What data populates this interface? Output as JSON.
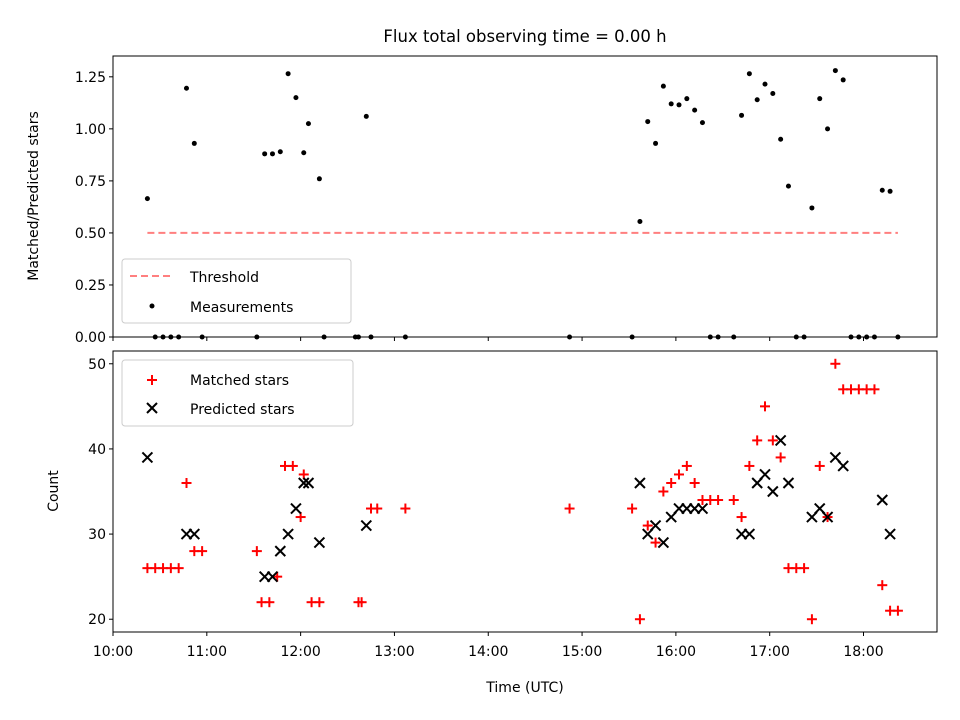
{
  "chart_data": [
    {
      "type": "scatter",
      "title": "Flux total observing time = 0.00 h",
      "xlabel": "",
      "ylabel": "Matched/Predicted stars",
      "xlim": [
        "10:00",
        "18:47"
      ],
      "ylim": [
        0,
        1.35
      ],
      "yticks": [
        "0.00",
        "0.25",
        "0.50",
        "0.75",
        "1.00",
        "1.25"
      ],
      "legend_position": "lower-left",
      "threshold": {
        "name": "Threshold",
        "y": 0.5,
        "x": [
          "10:22",
          "18:22"
        ],
        "color": "#ff7f7f",
        "style": "dashed"
      },
      "series": [
        {
          "name": "Measurements",
          "color": "#000000",
          "marker": "dot",
          "points": [
            [
              "10:22",
              0.665
            ],
            [
              "10:27",
              0
            ],
            [
              "10:32",
              0
            ],
            [
              "10:37",
              0
            ],
            [
              "10:42",
              0
            ],
            [
              "10:47",
              1.195
            ],
            [
              "10:52",
              0.93
            ],
            [
              "10:57",
              0
            ],
            [
              "11:32",
              0
            ],
            [
              "11:37",
              0.88
            ],
            [
              "11:42",
              0.88
            ],
            [
              "11:47",
              0.89
            ],
            [
              "11:52",
              1.265
            ],
            [
              "11:57",
              1.15
            ],
            [
              "12:02",
              0.885
            ],
            [
              "12:05",
              1.025
            ],
            [
              "12:12",
              0.76
            ],
            [
              "12:15",
              0
            ],
            [
              "12:35",
              0
            ],
            [
              "12:37",
              0
            ],
            [
              "12:42",
              1.06
            ],
            [
              "12:45",
              0
            ],
            [
              "13:07",
              0
            ],
            [
              "14:52",
              0
            ],
            [
              "15:32",
              0
            ],
            [
              "15:37",
              0.555
            ],
            [
              "15:42",
              1.035
            ],
            [
              "15:47",
              0.93
            ],
            [
              "15:52",
              1.205
            ],
            [
              "15:57",
              1.12
            ],
            [
              "16:02",
              1.115
            ],
            [
              "16:07",
              1.145
            ],
            [
              "16:12",
              1.09
            ],
            [
              "16:17",
              1.03
            ],
            [
              "16:22",
              0
            ],
            [
              "16:27",
              0
            ],
            [
              "16:37",
              0
            ],
            [
              "16:42",
              1.065
            ],
            [
              "16:47",
              1.265
            ],
            [
              "16:52",
              1.14
            ],
            [
              "16:57",
              1.215
            ],
            [
              "17:02",
              1.17
            ],
            [
              "17:07",
              0.95
            ],
            [
              "17:12",
              0.725
            ],
            [
              "17:17",
              0
            ],
            [
              "17:22",
              0
            ],
            [
              "17:27",
              0.62
            ],
            [
              "17:32",
              1.145
            ],
            [
              "17:37",
              1.0
            ],
            [
              "17:42",
              1.28
            ],
            [
              "17:47",
              1.235
            ],
            [
              "17:52",
              0
            ],
            [
              "17:57",
              0
            ],
            [
              "18:02",
              0
            ],
            [
              "18:07",
              0
            ],
            [
              "18:12",
              0.705
            ],
            [
              "18:17",
              0.7
            ],
            [
              "18:22",
              0
            ]
          ]
        }
      ]
    },
    {
      "type": "scatter",
      "title": "",
      "xlabel": "Time (UTC)",
      "ylabel": "Count",
      "xlim": [
        "10:00",
        "18:47"
      ],
      "ylim": [
        18.5,
        51.5
      ],
      "yticks": [
        "20",
        "30",
        "40",
        "50"
      ],
      "xticks": [
        "10:00",
        "11:00",
        "12:00",
        "13:00",
        "14:00",
        "15:00",
        "16:00",
        "17:00",
        "18:00"
      ],
      "legend_position": "upper-left",
      "series": [
        {
          "name": "Matched stars",
          "color": "#ff0000",
          "marker": "plus",
          "points": [
            [
              "10:22",
              26
            ],
            [
              "10:27",
              26
            ],
            [
              "10:32",
              26
            ],
            [
              "10:37",
              26
            ],
            [
              "10:42",
              26
            ],
            [
              "10:47",
              36
            ],
            [
              "10:52",
              28
            ],
            [
              "10:57",
              28
            ],
            [
              "11:32",
              28
            ],
            [
              "11:35",
              22
            ],
            [
              "11:40",
              22
            ],
            [
              "11:45",
              25
            ],
            [
              "11:50",
              38
            ],
            [
              "11:55",
              38
            ],
            [
              "12:00",
              32
            ],
            [
              "12:02",
              37
            ],
            [
              "12:07",
              22
            ],
            [
              "12:12",
              22
            ],
            [
              "12:37",
              22
            ],
            [
              "12:39",
              22
            ],
            [
              "12:45",
              33
            ],
            [
              "12:49",
              33
            ],
            [
              "13:07",
              33
            ],
            [
              "14:52",
              33
            ],
            [
              "15:32",
              33
            ],
            [
              "15:37",
              20
            ],
            [
              "15:42",
              31
            ],
            [
              "15:47",
              29
            ],
            [
              "15:52",
              35
            ],
            [
              "15:57",
              36
            ],
            [
              "16:02",
              37
            ],
            [
              "16:07",
              38
            ],
            [
              "16:12",
              36
            ],
            [
              "16:17",
              34
            ],
            [
              "16:22",
              34
            ],
            [
              "16:27",
              34
            ],
            [
              "16:37",
              34
            ],
            [
              "16:42",
              32
            ],
            [
              "16:47",
              38
            ],
            [
              "16:52",
              41
            ],
            [
              "16:57",
              45
            ],
            [
              "17:02",
              41
            ],
            [
              "17:07",
              39
            ],
            [
              "17:12",
              26
            ],
            [
              "17:17",
              26
            ],
            [
              "17:22",
              26
            ],
            [
              "17:27",
              20
            ],
            [
              "17:32",
              38
            ],
            [
              "17:37",
              32
            ],
            [
              "17:42",
              50
            ],
            [
              "17:47",
              47
            ],
            [
              "17:52",
              47
            ],
            [
              "17:57",
              47
            ],
            [
              "18:02",
              47
            ],
            [
              "18:07",
              47
            ],
            [
              "18:12",
              24
            ],
            [
              "18:17",
              21
            ],
            [
              "18:22",
              21
            ]
          ]
        },
        {
          "name": "Predicted stars",
          "color": "#000000",
          "marker": "x",
          "points": [
            [
              "10:22",
              39
            ],
            [
              "10:47",
              30
            ],
            [
              "10:52",
              30
            ],
            [
              "11:37",
              25
            ],
            [
              "11:42",
              25
            ],
            [
              "11:47",
              28
            ],
            [
              "11:52",
              30
            ],
            [
              "11:57",
              33
            ],
            [
              "12:02",
              36
            ],
            [
              "12:05",
              36
            ],
            [
              "12:12",
              29
            ],
            [
              "12:42",
              31
            ],
            [
              "15:37",
              36
            ],
            [
              "15:42",
              30
            ],
            [
              "15:47",
              31
            ],
            [
              "15:52",
              29
            ],
            [
              "15:57",
              32
            ],
            [
              "16:02",
              33
            ],
            [
              "16:07",
              33
            ],
            [
              "16:12",
              33
            ],
            [
              "16:17",
              33
            ],
            [
              "16:42",
              30
            ],
            [
              "16:47",
              30
            ],
            [
              "16:52",
              36
            ],
            [
              "16:57",
              37
            ],
            [
              "17:02",
              35
            ],
            [
              "17:07",
              41
            ],
            [
              "17:12",
              36
            ],
            [
              "17:27",
              32
            ],
            [
              "17:32",
              33
            ],
            [
              "17:37",
              32
            ],
            [
              "17:42",
              39
            ],
            [
              "17:47",
              38
            ],
            [
              "18:12",
              34
            ],
            [
              "18:17",
              30
            ]
          ]
        }
      ]
    }
  ]
}
